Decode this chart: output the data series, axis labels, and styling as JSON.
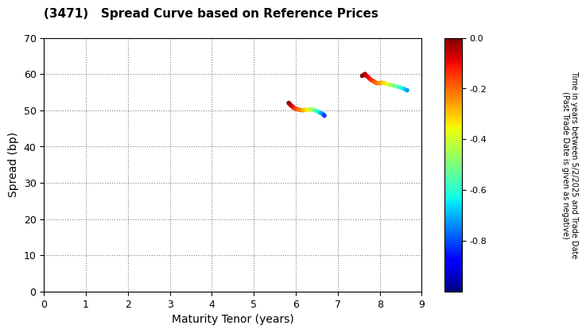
{
  "title": "(3471)   Spread Curve based on Reference Prices",
  "xlabel": "Maturity Tenor (years)",
  "ylabel": "Spread (bp)",
  "colorbar_label": "Time in years between 5/2/2025 and Trade Date\n(Past Trade Date is given as negative)",
  "xlim": [
    0,
    9
  ],
  "ylim": [
    0,
    70
  ],
  "xticks": [
    0,
    1,
    2,
    3,
    4,
    5,
    6,
    7,
    8,
    9
  ],
  "yticks": [
    0,
    10,
    20,
    30,
    40,
    50,
    60,
    70
  ],
  "cmap": "jet",
  "clim_min": -1.0,
  "clim_max": 0.0,
  "cticks": [
    0.0,
    -0.2,
    -0.4,
    -0.6,
    -0.8
  ],
  "background_color": "#ffffff",
  "cluster1": {
    "maturity": [
      5.83,
      5.85,
      5.87,
      5.9,
      5.92,
      5.94,
      5.96,
      5.98,
      6.0,
      6.03,
      6.06,
      6.1,
      6.14,
      6.18,
      6.22,
      6.27,
      6.32,
      6.38,
      6.44,
      6.5,
      6.55,
      6.6,
      6.65,
      6.68
    ],
    "spread": [
      52.0,
      51.8,
      51.5,
      51.2,
      51.0,
      50.8,
      50.6,
      50.5,
      50.4,
      50.3,
      50.2,
      50.1,
      50.0,
      50.0,
      50.1,
      50.1,
      50.2,
      50.2,
      50.0,
      49.8,
      49.5,
      49.2,
      48.9,
      48.5
    ],
    "time": [
      0.0,
      -0.02,
      -0.04,
      -0.06,
      -0.08,
      -0.1,
      -0.12,
      -0.14,
      -0.16,
      -0.18,
      -0.2,
      -0.22,
      -0.24,
      -0.27,
      -0.3,
      -0.35,
      -0.4,
      -0.45,
      -0.52,
      -0.58,
      -0.64,
      -0.7,
      -0.76,
      -0.82
    ]
  },
  "cluster2": {
    "maturity": [
      7.58,
      7.62,
      7.65,
      7.68,
      7.72,
      7.75,
      7.78,
      7.82,
      7.85,
      7.88,
      7.92,
      7.95,
      8.0,
      8.05,
      8.1,
      8.18,
      8.25,
      8.33,
      8.42,
      8.5,
      8.58,
      8.65
    ],
    "spread": [
      59.5,
      59.8,
      60.0,
      59.5,
      59.2,
      58.8,
      58.5,
      58.2,
      58.0,
      57.8,
      57.5,
      57.5,
      57.5,
      57.6,
      57.5,
      57.2,
      57.0,
      56.8,
      56.5,
      56.2,
      55.9,
      55.5
    ],
    "time": [
      0.0,
      -0.02,
      -0.04,
      -0.06,
      -0.08,
      -0.1,
      -0.12,
      -0.14,
      -0.16,
      -0.18,
      -0.2,
      -0.22,
      -0.25,
      -0.28,
      -0.32,
      -0.38,
      -0.43,
      -0.5,
      -0.56,
      -0.62,
      -0.67,
      -0.72
    ]
  }
}
